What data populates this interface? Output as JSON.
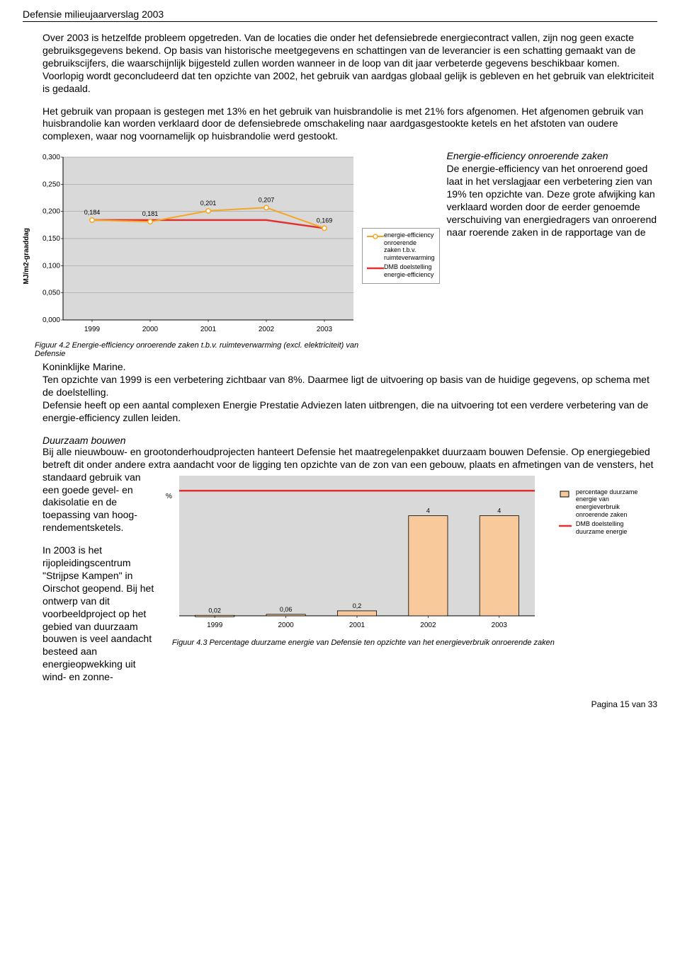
{
  "header": {
    "title": "Defensie milieujaarverslag 2003"
  },
  "paragraphs": {
    "p1": "Over 2003 is hetzelfde probleem opgetreden. Van de locaties die onder het defensiebrede energiecontract vallen, zijn nog geen exacte gebruiksgegevens bekend.",
    "p2": "Op basis van historische meetgegevens en schattingen van de leverancier is een schatting gemaakt van de gebruikscijfers, die waarschijnlijk bijgesteld zullen worden wanneer in de loop van dit jaar verbeterde gegevens beschikbaar komen.",
    "p3": "Voorlopig wordt geconcludeerd dat ten opzichte van 2002, het gebruik van aardgas globaal gelijk is gebleven en het gebruik van elektriciteit is gedaald.",
    "p4": "Het gebruik van propaan is gestegen met 13% en het gebruik van huisbrandolie is met 21% fors afgenomen. Het afgenomen gebruik van huisbrandolie kan worden verklaard door de defensiebrede omschakeling naar aardgasgestookte ketels en het afstoten van oudere complexen, waar nog voornamelijk op huisbrandolie werd gestookt."
  },
  "chart1": {
    "type": "line",
    "ylabel": "MJ/m2-graaddag",
    "categories": [
      "1999",
      "2000",
      "2001",
      "2002",
      "2003"
    ],
    "series_values": [
      0.184,
      0.181,
      0.201,
      0.207,
      0.169
    ],
    "series_labels": [
      "0,184",
      "0,181",
      "0,201",
      "0,207",
      "0,169"
    ],
    "target_values": [
      0.184,
      0.184,
      0.184,
      0.184,
      0.169
    ],
    "yticks": [
      0.0,
      0.05,
      0.1,
      0.15,
      0.2,
      0.25,
      0.3
    ],
    "ytick_labels": [
      "0,000",
      "0,050",
      "0,100",
      "0,150",
      "0,200",
      "0,250",
      "0,300"
    ],
    "ylim": [
      0,
      0.3
    ],
    "plot_bg": "#d9d9d9",
    "grid_color": "#a0a0a0",
    "series_color": "#f5a623",
    "target_color": "#e03030",
    "marker_fill": "#ffffff",
    "tick_fontsize": 10,
    "datalabel_fontsize": 9,
    "line_width": 2,
    "target_line_width": 2.5,
    "marker_radius": 3.2,
    "caption": "Figuur 4.2  Energie-efficiency onroerende zaken t.b.v. ruimteverwarming (excl. elektriciteit) van Defensie",
    "legend": {
      "item1": "energie-efficiency onroerende zaken t.b.v. ruimteverwarming",
      "item2": "DMB doelstelling energie-efficiency"
    }
  },
  "side_text": {
    "title": "Energie-efficiency onroerende zaken",
    "body": "De energie-efficiency van het onroerend goed laat in het verslagjaar een verbetering zien van 19% ten opzichte van. Deze grote afwijking kan verklaard worden door de eerder genoemde verschuiving van energiedragers van onroerend naar roerende zaken in de rapportage van de"
  },
  "after1": {
    "p1": "Koninklijke Marine.",
    "p2": "Ten opzichte van 1999 is een verbetering zichtbaar van 8%. Daarmee ligt de uitvoering op basis van de huidige gegevens, op schema met de doelstelling.",
    "p3": "Defensie heeft op een aantal complexen Energie Prestatie Adviezen laten uitbrengen, die na uitvoering tot een verdere verbetering van de energie-efficiency zullen leiden."
  },
  "sec2": {
    "title": "Duurzaam bouwen",
    "p1": "Bij alle nieuwbouw- en grootonderhoudprojecten hanteert Defensie het maatregelenpakket duurzaam bouwen Defensie. Op energiegebied betreft dit onder andere extra aandacht voor de ligging ten opzichte van de zon van een gebouw, plaats en afmetingen van de vensters, het",
    "left1": "standaard gebruik van een goede gevel- en dakisolatie en de toepassing van hoog-rendementsketels.",
    "left2": "In 2003 is het rijopleidingscentrum \"Strijpse Kampen\" in Oirschot geopend. Bij het ontwerp van dit voorbeeldproject op het gebied van duurzaam bouwen is veel aandacht besteed aan energieopwekking uit wind- en zonne-"
  },
  "chart2": {
    "type": "bar",
    "pct_label": "%",
    "categories": [
      "1999",
      "2000",
      "2001",
      "2002",
      "2003"
    ],
    "values": [
      0.02,
      0.06,
      0.2,
      4,
      4
    ],
    "value_labels": [
      "0,02",
      "0,06",
      "0,2",
      "4",
      "4"
    ],
    "target_y": 5,
    "ylim": [
      0,
      5.6
    ],
    "plot_bg": "#d9d9d9",
    "bar_fill": "#f7c99b",
    "bar_stroke": "#000000",
    "target_color": "#e03030",
    "bar_width_ratio": 0.55,
    "tick_fontsize": 10,
    "datalabel_fontsize": 9,
    "caption": "Figuur 4.3  Percentage duurzame energie van Defensie ten opzichte van het energieverbruik onroerende zaken",
    "legend": {
      "item1": "percentage duurzame energie van energieverbruik onroerende zaken",
      "item2": "DMB doelstelling duurzame energie"
    }
  },
  "footer": {
    "text": "Pagina 15 van 33"
  }
}
